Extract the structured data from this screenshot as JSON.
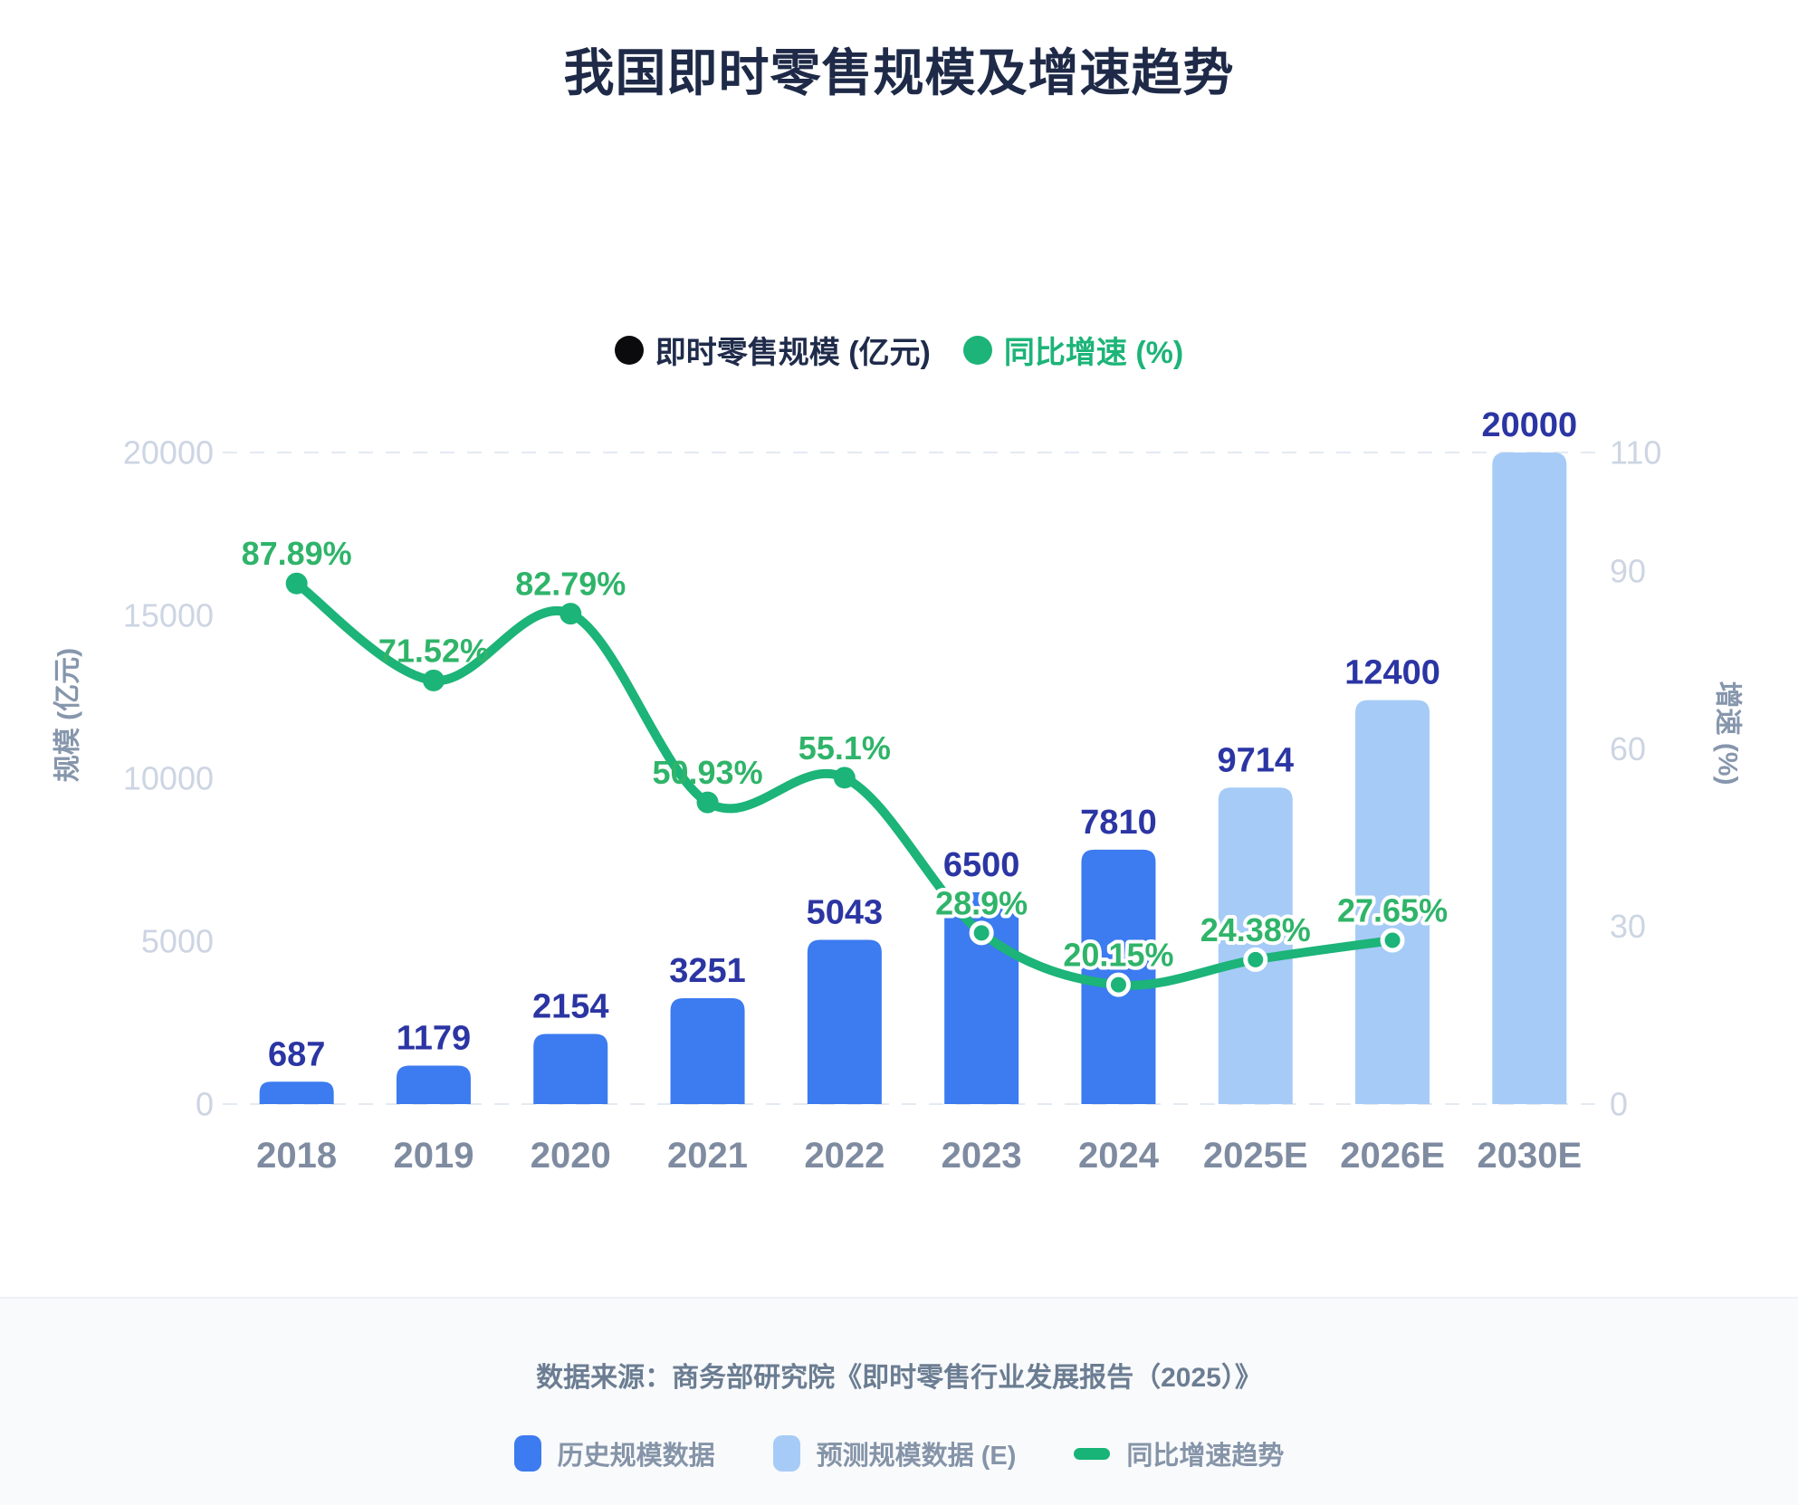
{
  "page": {
    "title": "我国即时零售规模及增速趋势"
  },
  "top_legend": {
    "items": [
      {
        "label": "即时零售规模 (亿元)",
        "marker_color": "#0b0b0e",
        "text_color": "#1f2b4a"
      },
      {
        "label": "同比增速 (%)",
        "marker_color": "#1cb478",
        "text_color": "#1cb478"
      }
    ]
  },
  "chart_data": {
    "type": "bar+line",
    "categories": [
      "2018",
      "2019",
      "2020",
      "2021",
      "2022",
      "2023",
      "2024",
      "2025E",
      "2026E",
      "2030E"
    ],
    "bar_series": {
      "name": "即时零售规模 (亿元)",
      "values": [
        687,
        1179,
        2154,
        3251,
        5043,
        6500,
        7810,
        9714,
        12400,
        20000
      ],
      "value_labels": [
        "687",
        "1179",
        "2154",
        "3251",
        "5043",
        "6500",
        "7810",
        "9714",
        "12400",
        "20000"
      ],
      "historical_color": "#3c7bf0",
      "forecast_color": "#a6cbf7",
      "forecast_start_index": 7,
      "label_color": "#2b35a3"
    },
    "line_series": {
      "name": "同比增速 (%)",
      "values": [
        87.89,
        71.52,
        82.79,
        50.93,
        55.1,
        28.9,
        20.15,
        24.38,
        27.65,
        null
      ],
      "point_labels": [
        "87.89%",
        "71.52%",
        "82.79%",
        "50.93%",
        "55.1%",
        "28.9%",
        "20.15%",
        "24.38%",
        "27.65%",
        ""
      ],
      "color": "#1cb478",
      "label_color": "#2fb46a",
      "halo_start_index": 5
    },
    "left_axis": {
      "title": "规模 (亿元)",
      "ticks": [
        0,
        5000,
        10000,
        15000,
        20000
      ],
      "max": 20000
    },
    "right_axis": {
      "title": "增速 (%)",
      "ticks": [
        0,
        30,
        60,
        90,
        110
      ],
      "max": 110
    },
    "axis_tick_color": "#cdd5e3",
    "axis_title_color": "#8696ac",
    "x_label_color": "#7e8ba0",
    "gridline_color": "#e4eaf2"
  },
  "footer": {
    "source": "数据来源：商务部研究院《即时零售行业发展报告（2025）》",
    "legend": [
      {
        "label": "历史规模数据",
        "swatch": "square",
        "color": "#3c7bf0"
      },
      {
        "label": "预测规模数据 (E)",
        "swatch": "square",
        "color": "#a6cbf7"
      },
      {
        "label": "同比增速趋势",
        "swatch": "line",
        "color": "#17b377"
      }
    ]
  }
}
